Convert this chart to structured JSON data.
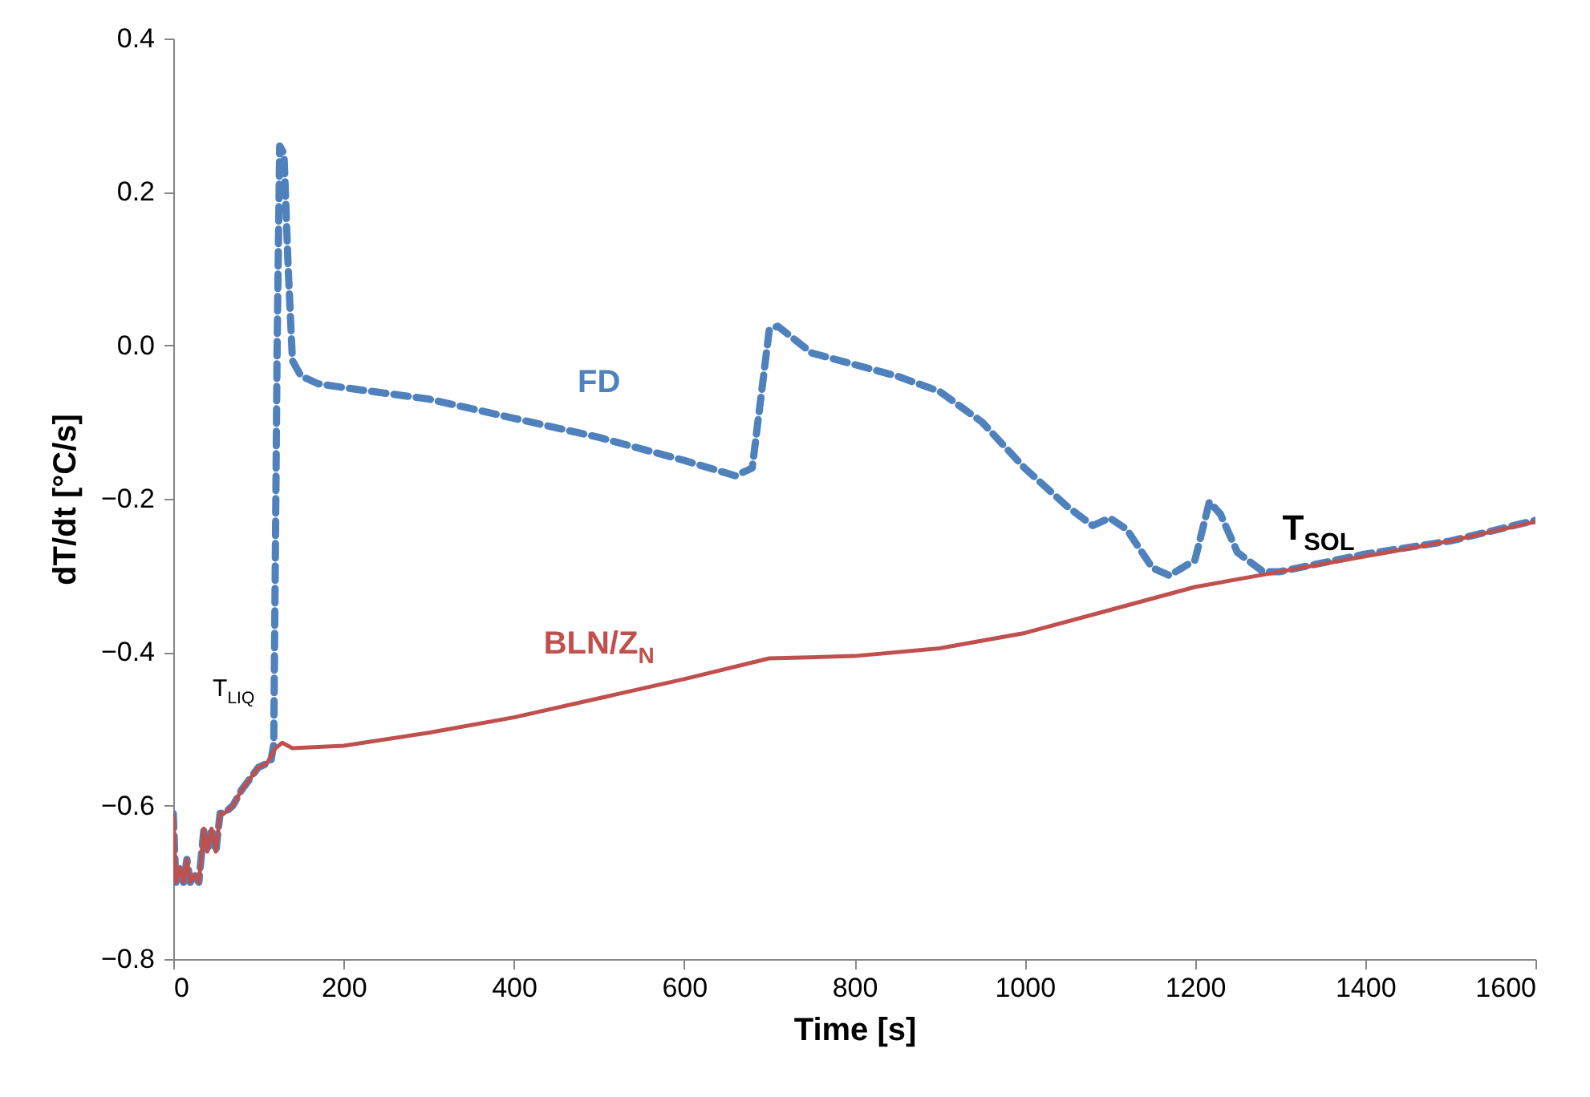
{
  "chart_data": {
    "type": "line",
    "xlabel": "Time [s]",
    "ylabel": "dT/dt [°C/s]",
    "xlim": [
      0,
      1600
    ],
    "xticks": [
      0,
      200,
      400,
      600,
      800,
      1000,
      1200,
      1400,
      1600
    ],
    "ylim": [
      -0.8,
      0.4
    ],
    "yticks": [
      {
        "value": -0.8,
        "label": "−0.8"
      },
      {
        "value": -0.6,
        "label": "−0.6"
      },
      {
        "value": -0.4,
        "label": "−0.4"
      },
      {
        "value": -0.2,
        "label": "−0.2"
      },
      {
        "value": 0,
        "label": "0.0"
      },
      0.2,
      0.4
    ],
    "grid": false,
    "annotations": [
      {
        "text": "T$_{LIQ}$",
        "x": 118,
        "y": -0.52
      },
      {
        "text": "T$_{SOL}$",
        "x": 1280,
        "y": -0.295
      }
    ],
    "series": [
      {
        "name": "FD",
        "color": "#4f81bd",
        "line_style": "dashed",
        "x": [
          0,
          3,
          8,
          12,
          16,
          20,
          25,
          30,
          36,
          40,
          45,
          50,
          55,
          60,
          70,
          80,
          90,
          100,
          110,
          115,
          118,
          122,
          125,
          130,
          135,
          140,
          150,
          170,
          200,
          300,
          400,
          500,
          600,
          660,
          680,
          700,
          710,
          750,
          800,
          850,
          900,
          950,
          1000,
          1050,
          1080,
          1100,
          1120,
          1150,
          1170,
          1200,
          1217,
          1230,
          1250,
          1280,
          1300,
          1400,
          1500,
          1600
        ],
        "values": [
          -0.61,
          -0.7,
          -0.68,
          -0.7,
          -0.67,
          -0.7,
          -0.69,
          -0.7,
          -0.63,
          -0.66,
          -0.63,
          -0.66,
          -0.61,
          -0.61,
          -0.6,
          -0.58,
          -0.565,
          -0.55,
          -0.545,
          -0.54,
          -0.52,
          0.0,
          0.26,
          0.25,
          0.1,
          -0.02,
          -0.04,
          -0.05,
          -0.055,
          -0.07,
          -0.095,
          -0.12,
          -0.15,
          -0.17,
          -0.16,
          0.02,
          0.025,
          -0.01,
          -0.025,
          -0.04,
          -0.06,
          -0.1,
          -0.16,
          -0.21,
          -0.235,
          -0.225,
          -0.24,
          -0.29,
          -0.3,
          -0.28,
          -0.204,
          -0.22,
          -0.27,
          -0.295,
          -0.295,
          -0.272,
          -0.255,
          -0.228
        ]
      },
      {
        "name": "BLN/Z$_{N}$",
        "color": "#c0504d",
        "line_style": "solid",
        "x": [
          0,
          3,
          8,
          12,
          16,
          20,
          25,
          30,
          36,
          40,
          45,
          50,
          55,
          60,
          70,
          80,
          90,
          100,
          110,
          120,
          128,
          140,
          200,
          300,
          400,
          500,
          600,
          700,
          800,
          900,
          1000,
          1100,
          1200,
          1300,
          1400,
          1500,
          1600
        ],
        "values": [
          -0.61,
          -0.7,
          -0.68,
          -0.7,
          -0.67,
          -0.7,
          -0.69,
          -0.7,
          -0.63,
          -0.66,
          -0.63,
          -0.66,
          -0.61,
          -0.61,
          -0.6,
          -0.58,
          -0.565,
          -0.55,
          -0.545,
          -0.525,
          -0.518,
          -0.525,
          -0.522,
          -0.505,
          -0.485,
          -0.46,
          -0.435,
          -0.408,
          -0.405,
          -0.395,
          -0.375,
          -0.345,
          -0.315,
          -0.295,
          -0.275,
          -0.255,
          -0.23
        ]
      }
    ]
  }
}
